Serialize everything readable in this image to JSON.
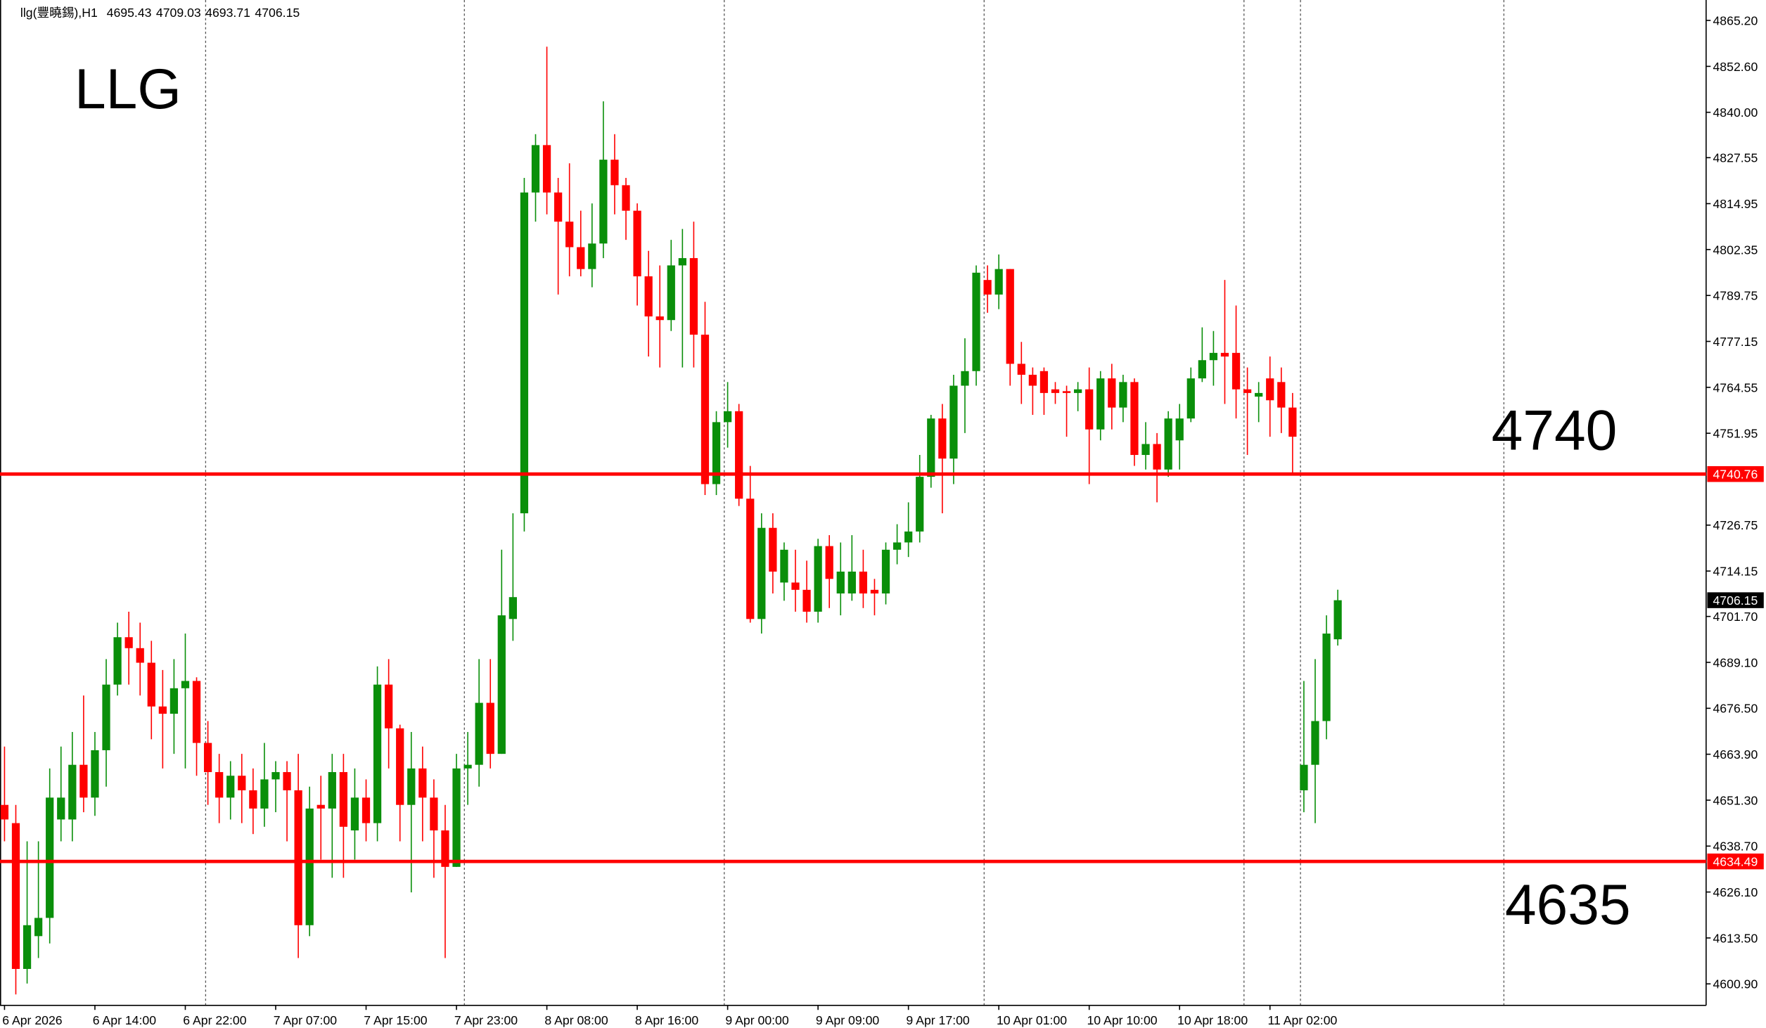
{
  "chart_data": {
    "type": "candlestick",
    "symbol": "llg(豐曉錫),H1",
    "title": "LLG",
    "annotations": [
      "4740",
      "4635"
    ],
    "up_color": "#0a8f0a",
    "down_color": "#ff0000",
    "level_color": "#ff0000",
    "x": [
      "6 Apr 2026",
      null,
      null,
      null,
      null,
      null,
      null,
      null,
      "6 Apr 14:00",
      null,
      null,
      null,
      null,
      null,
      null,
      null,
      "6 Apr 22:00",
      null,
      null,
      null,
      null,
      null,
      null,
      null,
      "7 Apr 07:00",
      null,
      null,
      null,
      null,
      null,
      null,
      null,
      "7 Apr 15:00",
      null,
      null,
      null,
      null,
      null,
      null,
      null,
      "7 Apr 23:00",
      null,
      null,
      null,
      null,
      null,
      null,
      null,
      "8 Apr 08:00",
      null,
      null,
      null,
      null,
      null,
      null,
      null,
      "8 Apr 16:00",
      null,
      null,
      null,
      null,
      null,
      null,
      null,
      "9 Apr 00:00",
      null,
      null,
      null,
      null,
      null,
      null,
      null,
      "9 Apr 09:00",
      null,
      null,
      null,
      null,
      null,
      null,
      null,
      "9 Apr 17:00",
      null,
      null,
      null,
      null,
      null,
      null,
      null,
      "10 Apr 01:00",
      null,
      null,
      null,
      null,
      null,
      null,
      null,
      "10 Apr 10:00",
      null,
      null,
      null,
      null,
      null,
      null,
      null,
      "10 Apr 18:00",
      null,
      null,
      null,
      null,
      null,
      null,
      null,
      "11 Apr 02:00",
      null,
      null,
      null,
      null,
      null,
      null
    ],
    "open": [
      4650,
      4645,
      4605,
      4614,
      4619,
      4646,
      4646,
      4661,
      4652,
      4665,
      4683,
      4696,
      4693,
      4689,
      4677,
      4675,
      4682,
      4684,
      4667,
      4659,
      4652,
      4658,
      4654,
      4649,
      4657,
      4659,
      4654,
      4617,
      4650,
      4649,
      4659,
      4643,
      4652,
      4645,
      4683,
      4671,
      4650,
      4660,
      4652,
      4643,
      4633,
      4660,
      4661,
      4678,
      4664,
      4701,
      4730,
      4818,
      4831,
      4818,
      4810,
      4803,
      4797,
      4804,
      4827,
      4820,
      4813,
      4795,
      4784,
      4783,
      4798,
      4800,
      4779,
      4738,
      4755,
      4758,
      4734,
      4701,
      4726,
      4711,
      4711,
      4709,
      4703,
      4721,
      4708,
      4708,
      4714,
      4709,
      4708,
      4720,
      4722,
      4725,
      4740,
      4756,
      4745,
      4765,
      4769,
      4794,
      4790,
      4797,
      4771,
      4768,
      4769,
      4764,
      4763.5,
      4763,
      4764,
      4753,
      4767,
      4759,
      4766,
      4746,
      4749,
      4742,
      4750,
      4756,
      4767,
      4772,
      4774,
      4774,
      4764,
      4762,
      4767,
      4766,
      4759,
      4654,
      4661,
      4673,
      4695.43
    ],
    "high": [
      4666,
      4650,
      4640,
      4640,
      4660,
      4666,
      4670,
      4680,
      4670,
      4690,
      4700,
      4703,
      4700,
      4695,
      4687,
      4690,
      4697,
      4685,
      4673,
      4664,
      4662,
      4664,
      4660,
      4667,
      4662,
      4662,
      4664,
      4655,
      4658,
      4664,
      4664,
      4660,
      4657,
      4688,
      4690,
      4672,
      4670,
      4666,
      4657,
      4650,
      4664,
      4670,
      4690,
      4690,
      4720,
      4730,
      4822,
      4834,
      4858,
      4822,
      4826,
      4813,
      4815,
      4843,
      4834,
      4822,
      4815,
      4802,
      4798,
      4805,
      4808,
      4810,
      4788,
      4758,
      4766,
      4760,
      4743,
      4730,
      4730,
      4722,
      4720,
      4717,
      4723,
      4724,
      4722,
      4724,
      4720,
      4712,
      4722,
      4727,
      4733,
      4746,
      4757,
      4760,
      4768,
      4778,
      4798,
      4798,
      4801,
      4797,
      4777,
      4770,
      4770,
      4766,
      4765,
      4766,
      4770,
      4769,
      4771,
      4768,
      4767,
      4755,
      4752,
      4758,
      4760,
      4770,
      4781,
      4780,
      4794,
      4787,
      4770,
      4766,
      4773,
      4770,
      4763,
      4684,
      4690,
      4702,
      4709.03
    ],
    "low": [
      4640,
      4598,
      4601,
      4608,
      4612,
      4640,
      4640,
      4648,
      4647,
      4655,
      4680,
      4683,
      4680,
      4668,
      4660,
      4664,
      4660,
      4658,
      4650,
      4645,
      4646,
      4645,
      4642,
      4644,
      4648,
      4640,
      4608,
      4614,
      4635,
      4630,
      4630,
      4635,
      4640,
      4640,
      4660,
      4640,
      4626,
      4640,
      4630,
      4608,
      4633,
      4650,
      4655,
      4660,
      4664,
      4695,
      4725,
      4810,
      4812,
      4790,
      4795,
      4795,
      4792,
      4800,
      4812,
      4805,
      4787,
      4773,
      4770,
      4780,
      4770,
      4770,
      4735,
      4735,
      4748,
      4732,
      4700,
      4697,
      4708,
      4706,
      4703,
      4700,
      4700,
      4704,
      4702,
      4706,
      4704,
      4702,
      4705,
      4716,
      4718,
      4722,
      4737,
      4730,
      4738,
      4752,
      4765,
      4785,
      4786,
      4765,
      4760,
      4757,
      4757,
      4760,
      4751,
      4758,
      4738,
      4750,
      4753,
      4755,
      4743,
      4742,
      4733,
      4740,
      4742,
      4755,
      4766,
      4765,
      4760,
      4756,
      4746,
      4755,
      4751,
      4752,
      4741,
      4648,
      4645,
      4668,
      4693.71
    ],
    "close": [
      4646,
      4605,
      4617,
      4619,
      4652,
      4652,
      4661,
      4652,
      4665,
      4683,
      4696,
      4693,
      4689,
      4677,
      4675,
      4682,
      4684,
      4667,
      4659,
      4652,
      4658,
      4654,
      4649,
      4657,
      4659,
      4654,
      4617,
      4649,
      4649,
      4659,
      4644,
      4652,
      4645,
      4683,
      4671,
      4650,
      4660,
      4652,
      4643,
      4633,
      4660,
      4661,
      4678,
      4664,
      4702,
      4707,
      4818,
      4831,
      4818,
      4810,
      4803,
      4797,
      4804,
      4827,
      4820,
      4813,
      4795,
      4784,
      4783,
      4798,
      4800,
      4779,
      4738,
      4755,
      4758,
      4734,
      4701,
      4726,
      4714,
      4720,
      4709,
      4703,
      4721,
      4712,
      4714,
      4714,
      4708,
      4708,
      4720,
      4722,
      4725,
      4740,
      4756,
      4745,
      4765,
      4769,
      4796,
      4790,
      4797,
      4771,
      4768,
      4765,
      4763,
      4763,
      4763,
      4764,
      4753,
      4767,
      4759,
      4766,
      4746,
      4749,
      4742,
      4756,
      4756,
      4767,
      4772,
      4774,
      4773,
      4764,
      4763,
      4763,
      4761,
      4759,
      4751,
      4661,
      4673,
      4697,
      4706.15
    ],
    "levels": [
      4740.76,
      4634.49
    ],
    "ylim": [
      4595.0,
      4870.8
    ],
    "yticks": [
      {
        "value": 4865.2,
        "label": "4865.20"
      },
      {
        "value": 4852.6,
        "label": "4852.60"
      },
      {
        "value": 4840.0,
        "label": "4840.00"
      },
      {
        "value": 4827.55,
        "label": "4827.55"
      },
      {
        "value": 4814.95,
        "label": "4814.95"
      },
      {
        "value": 4802.35,
        "label": "4802.35"
      },
      {
        "value": 4789.75,
        "label": "4789.75"
      },
      {
        "value": 4777.15,
        "label": "4777.15"
      },
      {
        "value": 4764.55,
        "label": "4764.55"
      },
      {
        "value": 4751.95,
        "label": "4751.95"
      },
      {
        "value": 4726.75,
        "label": "4726.75"
      },
      {
        "value": 4714.15,
        "label": "4714.15"
      },
      {
        "value": 4701.7,
        "label": "4701.70"
      },
      {
        "value": 4689.1,
        "label": "4689.10"
      },
      {
        "value": 4676.5,
        "label": "4676.50"
      },
      {
        "value": 4663.9,
        "label": "4663.90"
      },
      {
        "value": 4651.3,
        "label": "4651.30"
      },
      {
        "value": 4638.7,
        "label": "4638.70"
      },
      {
        "value": 4626.1,
        "label": "4626.10"
      },
      {
        "value": 4613.5,
        "label": "4613.50"
      },
      {
        "value": 4600.9,
        "label": "4600.90"
      }
    ],
    "grid": false
  }
}
